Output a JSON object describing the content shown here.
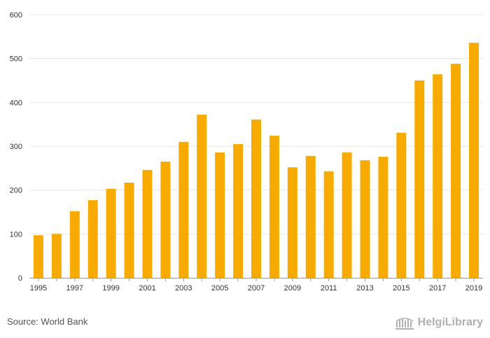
{
  "chart_data": {
    "type": "bar",
    "categories": [
      "1995",
      "1996",
      "1997",
      "1998",
      "1999",
      "2000",
      "2001",
      "2002",
      "2003",
      "2004",
      "2005",
      "2006",
      "2007",
      "2008",
      "2009",
      "2010",
      "2011",
      "2012",
      "2013",
      "2014",
      "2015",
      "2016",
      "2017",
      "2018",
      "2019"
    ],
    "x_tick_labels": [
      "1995",
      "1997",
      "1999",
      "2001",
      "2003",
      "2005",
      "2007",
      "2009",
      "2011",
      "2013",
      "2015",
      "2017",
      "2019"
    ],
    "values": [
      97,
      100,
      152,
      177,
      203,
      217,
      246,
      265,
      310,
      372,
      286,
      305,
      361,
      324,
      252,
      278,
      243,
      286,
      268,
      276,
      331,
      450,
      464,
      488,
      536
    ],
    "ylim": [
      0,
      600
    ],
    "y_ticks": [
      0,
      100,
      200,
      300,
      400,
      500,
      600
    ],
    "y_tick_labels": [
      "0",
      "100",
      "200",
      "300",
      "400",
      "500",
      "600"
    ],
    "grid": true,
    "bar_color": "#f7ab00",
    "title": "",
    "xlabel": "",
    "ylabel": ""
  },
  "footer": {
    "source": "Source: World Bank",
    "brand": "HelgiLibrary",
    "brand_icon": "library-logo-icon"
  }
}
